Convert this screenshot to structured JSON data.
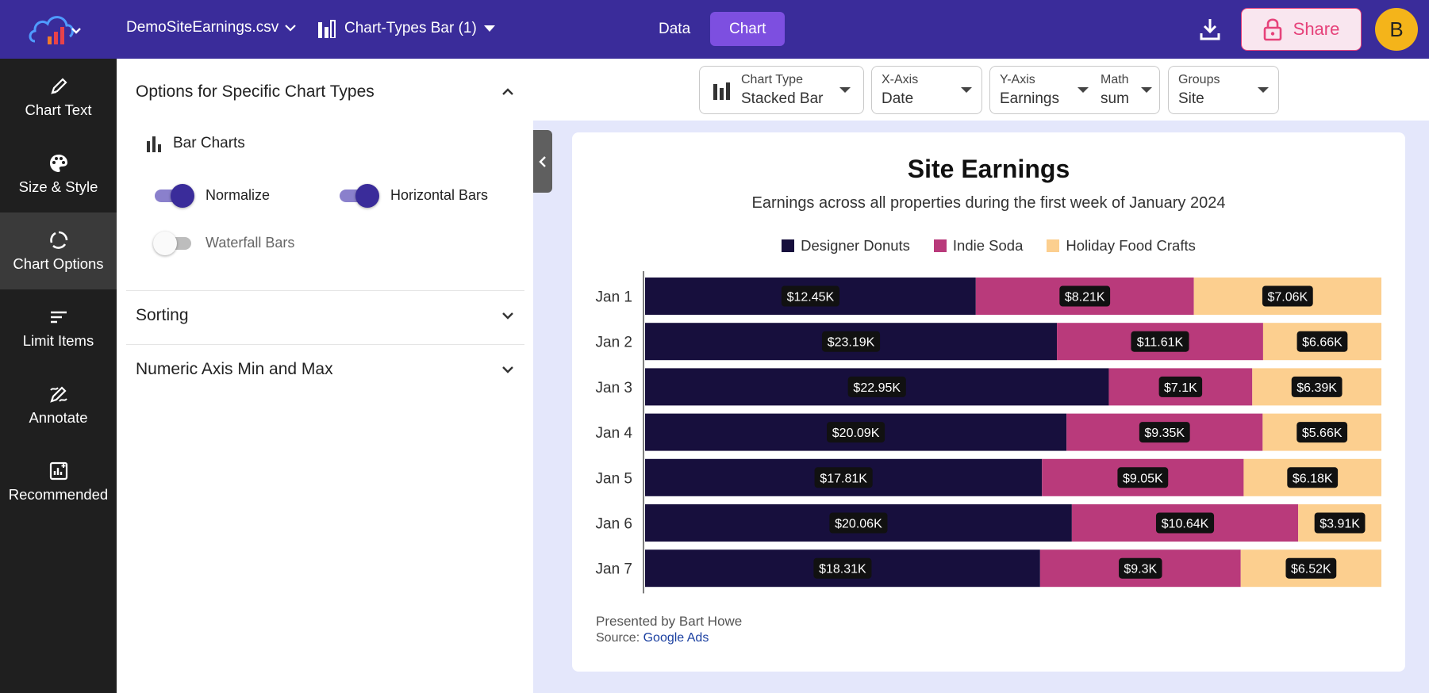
{
  "topbar": {
    "file_name": "DemoSiteEarnings.csv",
    "chart_name": "Chart-Types Bar (1)",
    "tab_data": "Data",
    "tab_chart": "Chart",
    "share_label": "Share",
    "avatar_initial": "B"
  },
  "nav": {
    "items": [
      {
        "label": "Chart Text",
        "icon": "pencil-icon"
      },
      {
        "label": "Size & Style",
        "icon": "palette-icon"
      },
      {
        "label": "Chart Options",
        "icon": "circle-options-icon"
      },
      {
        "label": "Limit Items",
        "icon": "limit-lines-icon"
      },
      {
        "label": "Annotate",
        "icon": "annotate-icon"
      },
      {
        "label": "Recommended",
        "icon": "recommended-chart-icon"
      }
    ]
  },
  "panel": {
    "section_specific": "Options for Specific Chart Types",
    "bar_charts_label": "Bar Charts",
    "normalize_label": "Normalize",
    "horizontal_label": "Horizontal Bars",
    "waterfall_label": "Waterfall Bars",
    "section_sorting": "Sorting",
    "section_axis": "Numeric Axis Min and Max"
  },
  "controls": {
    "chart_type_label": "Chart Type",
    "chart_type_value": "Stacked Bar",
    "xaxis_label": "X-Axis",
    "xaxis_value": "Date",
    "yaxis_label": "Y-Axis",
    "yaxis_value": "Earnings",
    "math_label": "Math",
    "math_value": "sum",
    "groups_label": "Groups",
    "groups_value": "Site"
  },
  "chart_data": {
    "type": "bar",
    "orientation": "horizontal",
    "stacked": true,
    "normalized": true,
    "title": "Site Earnings",
    "subtitle": "Earnings across all properties during the first week of January 2024",
    "categories": [
      "Jan 1",
      "Jan 2",
      "Jan 3",
      "Jan 4",
      "Jan 5",
      "Jan 6",
      "Jan 7"
    ],
    "series": [
      {
        "name": "Designer Donuts",
        "color": "#170f3d",
        "values": [
          12.45,
          23.19,
          22.95,
          20.09,
          17.81,
          20.06,
          18.31
        ],
        "labels": [
          "$12.45K",
          "$23.19K",
          "$22.95K",
          "$20.09K",
          "$17.81K",
          "$20.06K",
          "$18.31K"
        ]
      },
      {
        "name": "Indie Soda",
        "color": "#b93a7b",
        "values": [
          8.21,
          11.61,
          7.1,
          9.35,
          9.05,
          10.64,
          9.3
        ],
        "labels": [
          "$8.21K",
          "$11.61K",
          "$7.1K",
          "$9.35K",
          "$9.05K",
          "$10.64K",
          "$9.3K"
        ]
      },
      {
        "name": "Holiday Food Crafts",
        "color": "#fccf8f",
        "values": [
          7.06,
          6.66,
          6.39,
          5.66,
          6.18,
          3.91,
          6.52
        ],
        "labels": [
          "$7.06K",
          "$6.66K",
          "$6.39K",
          "$5.66K",
          "$6.18K",
          "$3.91K",
          "$6.52K"
        ]
      }
    ],
    "xlabel": "",
    "ylabel": "",
    "legend_position": "top"
  },
  "footer": {
    "credit": "Presented by Bart Howe",
    "source_prefix": "Source:",
    "source_link": "Google Ads"
  },
  "colors": {
    "topbar": "#3a2c9a",
    "accent": "#7d4fe0",
    "share": "#e6427a",
    "avatar": "#f4b41a"
  }
}
